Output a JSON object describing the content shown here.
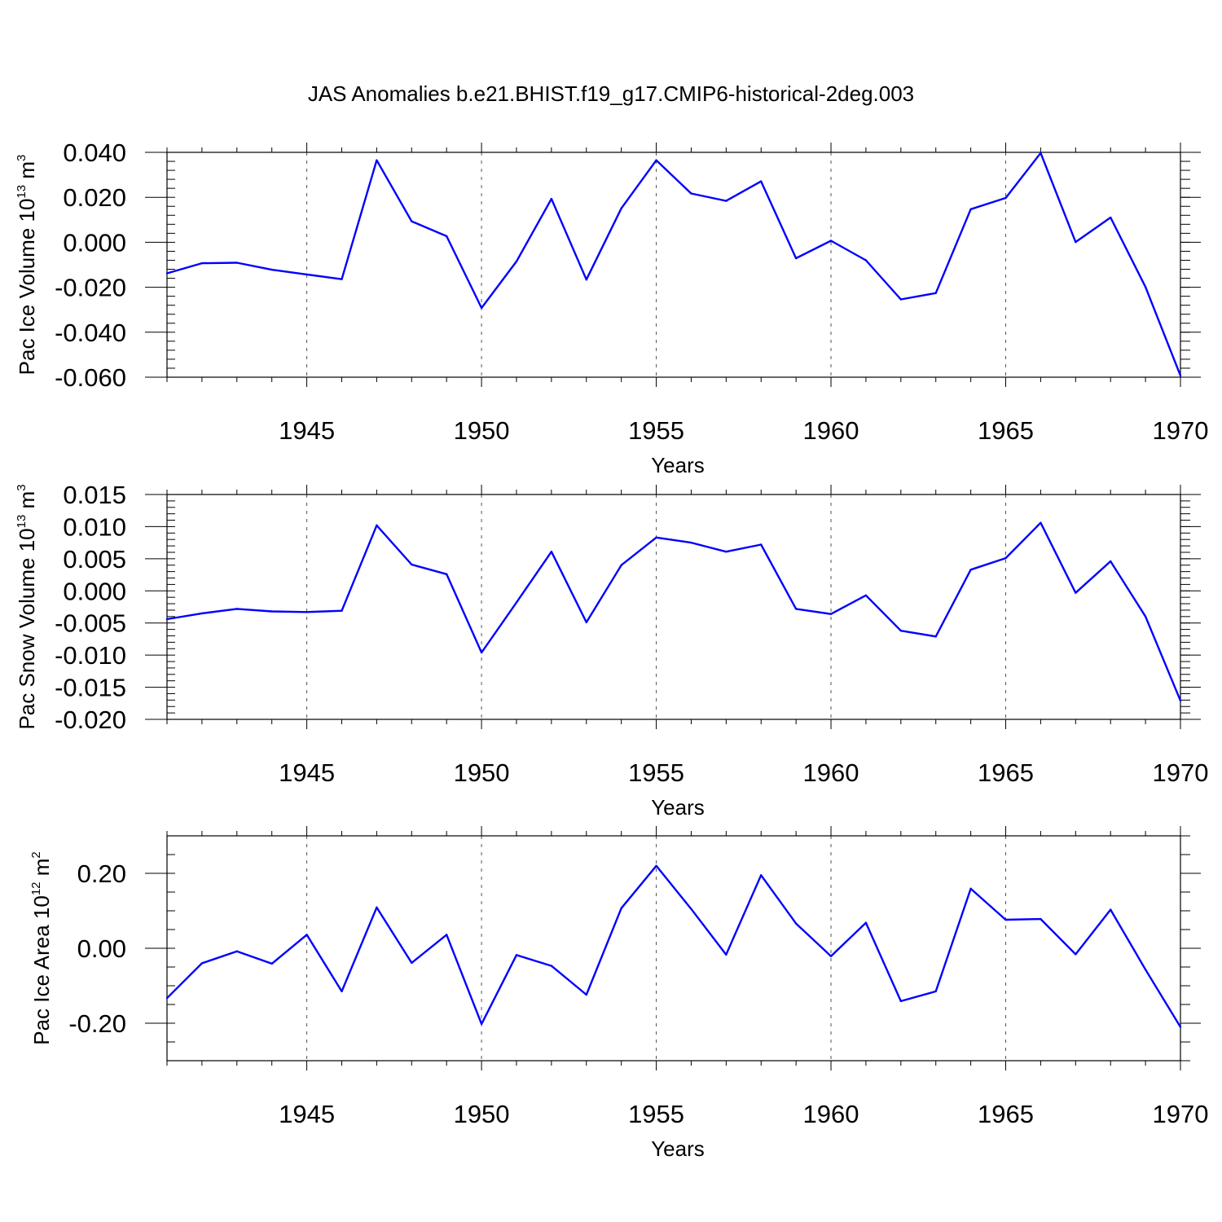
{
  "title": "JAS Anomalies b.e21.BHIST.f19_g17.CMIP6-historical-2deg.003",
  "colors": {
    "series": "#0000ff",
    "frame": "#000000",
    "grid": "#555555"
  },
  "chart_data": [
    {
      "type": "line",
      "ylabel": {
        "name": "Pac Ice Volume",
        "unit_base": "10",
        "unit_exp": "13",
        "unit_tail": " m",
        "unit_tail_exp": "3"
      },
      "xlabel": "Years",
      "xlim": [
        1941,
        1970
      ],
      "ylim": [
        -0.06,
        0.04
      ],
      "yticks": [
        -0.06,
        -0.04,
        -0.02,
        0.0,
        0.02,
        0.04
      ],
      "ytick_labels": [
        "-0.060",
        "-0.040",
        "-0.020",
        "0.000",
        "0.020",
        "0.040"
      ],
      "yminor_step": 0.004,
      "xticks": [
        1945,
        1950,
        1955,
        1960,
        1965,
        1970
      ],
      "xtick_labels": [
        "1945",
        "1950",
        "1955",
        "1960",
        "1965",
        "1970"
      ],
      "grid": "vertical dashed at major x ticks",
      "series": [
        {
          "name": "Pac Ice Volume",
          "x": [
            1941,
            1942,
            1943,
            1944,
            1945,
            1946,
            1947,
            1948,
            1949,
            1950,
            1951,
            1952,
            1953,
            1954,
            1955,
            1956,
            1957,
            1958,
            1959,
            1960,
            1961,
            1962,
            1963,
            1964,
            1965,
            1966,
            1967,
            1968,
            1969,
            1970
          ],
          "values": [
            -0.0138,
            -0.0093,
            -0.0091,
            -0.0122,
            -0.0143,
            -0.0164,
            0.0365,
            0.0093,
            0.0027,
            -0.0292,
            -0.0085,
            0.0193,
            -0.0166,
            0.0151,
            0.0365,
            0.0217,
            0.0184,
            0.0271,
            -0.0071,
            0.0007,
            -0.008,
            -0.0254,
            -0.0226,
            0.0147,
            0.0197,
            0.0397,
            0.0001,
            0.011,
            -0.0199,
            -0.0593
          ]
        }
      ]
    },
    {
      "type": "line",
      "ylabel": {
        "name": "Pac Snow Volume",
        "unit_base": "10",
        "unit_exp": "13",
        "unit_tail": " m",
        "unit_tail_exp": "3"
      },
      "xlabel": "Years",
      "xlim": [
        1941,
        1970
      ],
      "ylim": [
        -0.02,
        0.015
      ],
      "yticks": [
        -0.02,
        -0.015,
        -0.01,
        -0.005,
        0.0,
        0.005,
        0.01,
        0.015
      ],
      "ytick_labels": [
        "-0.020",
        "-0.015",
        "-0.010",
        "-0.005",
        "0.000",
        "0.005",
        "0.010",
        "0.015"
      ],
      "yminor_step": 0.001,
      "xticks": [
        1945,
        1950,
        1955,
        1960,
        1965,
        1970
      ],
      "xtick_labels": [
        "1945",
        "1950",
        "1955",
        "1960",
        "1965",
        "1970"
      ],
      "grid": "vertical dashed at major x ticks",
      "series": [
        {
          "name": "Pac Snow Volume",
          "x": [
            1941,
            1942,
            1943,
            1944,
            1945,
            1946,
            1947,
            1948,
            1949,
            1950,
            1951,
            1952,
            1953,
            1954,
            1955,
            1956,
            1957,
            1958,
            1959,
            1960,
            1961,
            1962,
            1963,
            1964,
            1965,
            1966,
            1967,
            1968,
            1969,
            1970
          ],
          "values": [
            -0.0044,
            -0.0035,
            -0.0028,
            -0.0032,
            -0.0033,
            -0.0031,
            0.0102,
            0.0041,
            0.0026,
            -0.0096,
            -0.0018,
            0.0061,
            -0.0049,
            0.004,
            0.0083,
            0.0075,
            0.0061,
            0.0072,
            -0.0028,
            -0.0036,
            -0.0007,
            -0.0062,
            -0.0071,
            0.0033,
            0.0051,
            0.0106,
            -0.0003,
            0.0046,
            -0.004,
            -0.0171
          ]
        }
      ]
    },
    {
      "type": "line",
      "ylabel": {
        "name": "Pac Ice Area",
        "unit_base": "10",
        "unit_exp": "12",
        "unit_tail": " m",
        "unit_tail_exp": "2"
      },
      "xlabel": "Years",
      "xlim": [
        1941,
        1970
      ],
      "ylim": [
        -0.3,
        0.3
      ],
      "yticks": [
        -0.2,
        0.0,
        0.2
      ],
      "ytick_labels": [
        "-0.20",
        "0.00",
        "0.20"
      ],
      "yminor_step": 0.05,
      "xticks": [
        1945,
        1950,
        1955,
        1960,
        1965,
        1970
      ],
      "xtick_labels": [
        "1945",
        "1950",
        "1955",
        "1960",
        "1965",
        "1970"
      ],
      "grid": "vertical dashed at major x ticks",
      "series": [
        {
          "name": "Pac Ice Area",
          "x": [
            1941,
            1942,
            1943,
            1944,
            1945,
            1946,
            1947,
            1948,
            1949,
            1950,
            1951,
            1952,
            1953,
            1954,
            1955,
            1956,
            1957,
            1958,
            1959,
            1960,
            1961,
            1962,
            1963,
            1964,
            1965,
            1966,
            1967,
            1968,
            1969,
            1970
          ],
          "values": [
            -0.133,
            -0.04,
            -0.008,
            -0.041,
            0.036,
            -0.115,
            0.109,
            -0.039,
            0.036,
            -0.202,
            -0.018,
            -0.047,
            -0.124,
            0.107,
            0.22,
            0.105,
            -0.017,
            0.195,
            0.066,
            -0.021,
            0.068,
            -0.141,
            -0.115,
            0.159,
            0.076,
            0.078,
            -0.016,
            0.103,
            -0.057,
            -0.21
          ]
        }
      ]
    }
  ]
}
